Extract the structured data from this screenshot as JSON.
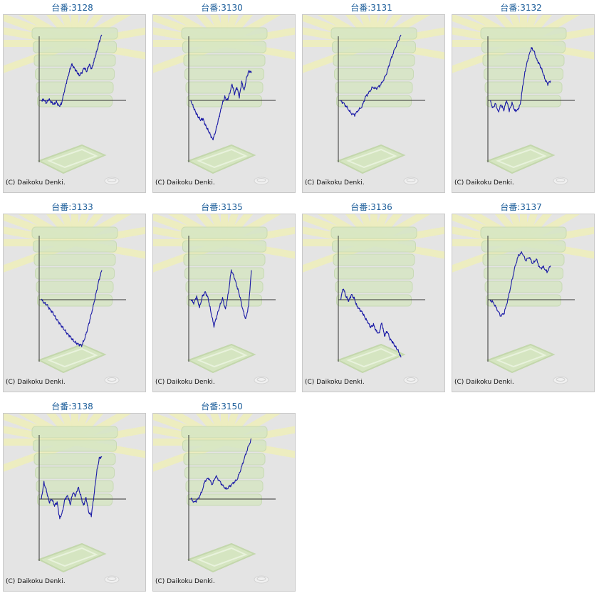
{
  "credit": "(C) Daikoku Denki.",
  "colors": {
    "line": "#1a1aa6",
    "axis": "#333333",
    "title": "#1a5c99",
    "panel_bg": "#e4e4e4"
  },
  "chart_data": [
    {
      "type": "line",
      "title": "台番:3128",
      "ylim": [
        -1,
        1
      ],
      "values": [
        0,
        0.01,
        -0.04,
        0.02,
        -0.03,
        -0.06,
        -0.02,
        -0.09,
        -0.05,
        0.12,
        0.28,
        0.42,
        0.55,
        0.5,
        0.44,
        0.38,
        0.42,
        0.5,
        0.44,
        0.55,
        0.48,
        0.62,
        0.75,
        0.9,
        1.0
      ]
    },
    {
      "type": "line",
      "title": "台番:3130",
      "ylim": [
        -1,
        1
      ],
      "values": [
        0,
        -0.1,
        -0.18,
        -0.25,
        -0.3,
        -0.28,
        -0.38,
        -0.45,
        -0.52,
        -0.6,
        -0.5,
        -0.35,
        -0.2,
        -0.05,
        0.05,
        0,
        0.1,
        0.25,
        0.1,
        0.2,
        0.05,
        0.28,
        0.15,
        0.35,
        0.45,
        0.42
      ]
    },
    {
      "type": "line",
      "title": "台番:3131",
      "ylim": [
        -1,
        1
      ],
      "values": [
        0,
        -0.05,
        -0.12,
        -0.2,
        -0.22,
        -0.15,
        -0.1,
        0.05,
        0.12,
        0.2,
        0.18,
        0.22,
        0.3,
        0.42,
        0.6,
        0.75,
        0.88,
        1.0
      ]
    },
    {
      "type": "line",
      "title": "台番:3132",
      "ylim": [
        -1,
        1
      ],
      "values": [
        0,
        -0.12,
        -0.05,
        -0.18,
        -0.06,
        -0.15,
        0,
        -0.16,
        -0.04,
        -0.16,
        -0.15,
        -0.06,
        0.25,
        0.5,
        0.66,
        0.8,
        0.75,
        0.62,
        0.55,
        0.45,
        0.32,
        0.25,
        0.3
      ]
    },
    {
      "type": "line",
      "title": "台番:3133",
      "ylim": [
        -1,
        1
      ],
      "values": [
        0,
        -0.05,
        -0.08,
        -0.15,
        -0.2,
        -0.28,
        -0.34,
        -0.4,
        -0.46,
        -0.52,
        -0.56,
        -0.62,
        -0.66,
        -0.68,
        -0.7,
        -0.6,
        -0.45,
        -0.28,
        -0.1,
        0.1,
        0.3,
        0.45
      ]
    },
    {
      "type": "line",
      "title": "台番:3135",
      "ylim": [
        -1,
        1
      ],
      "values": [
        0,
        -0.05,
        0.05,
        -0.12,
        0.05,
        0.12,
        0.02,
        -0.2,
        -0.4,
        -0.25,
        -0.1,
        0.02,
        -0.15,
        0.1,
        0.45,
        0.35,
        0.2,
        0.05,
        -0.15,
        -0.3,
        -0.1,
        0.45
      ]
    },
    {
      "type": "line",
      "title": "台番:3136",
      "ylim": [
        -1,
        1
      ],
      "values": [
        0,
        0.18,
        0.05,
        -0.02,
        0.08,
        0.02,
        -0.1,
        -0.15,
        -0.2,
        -0.28,
        -0.35,
        -0.42,
        -0.38,
        -0.48,
        -0.52,
        -0.35,
        -0.55,
        -0.48,
        -0.6,
        -0.65,
        -0.72,
        -0.78,
        -0.88
      ]
    },
    {
      "type": "line",
      "title": "台番:3137",
      "ylim": [
        -1,
        1
      ],
      "values": [
        0,
        -0.05,
        -0.15,
        -0.25,
        -0.2,
        0,
        0.25,
        0.5,
        0.68,
        0.72,
        0.6,
        0.65,
        0.55,
        0.62,
        0.48,
        0.5,
        0.42,
        0.52
      ]
    },
    {
      "type": "line",
      "title": "台番:3138",
      "ylim": [
        -1,
        1
      ],
      "values": [
        0,
        0.25,
        0.12,
        -0.05,
        0,
        -0.1,
        -0.05,
        -0.3,
        -0.2,
        0,
        0.05,
        -0.08,
        0.1,
        0.05,
        0.18,
        0.05,
        -0.1,
        0.02,
        -0.2,
        -0.25,
        0.05,
        0.4,
        0.62,
        0.65
      ]
    },
    {
      "type": "line",
      "title": "台番:3150",
      "ylim": [
        -1,
        1
      ],
      "values": [
        0,
        -0.05,
        0,
        0.1,
        0.28,
        0.32,
        0.22,
        0.35,
        0.28,
        0.2,
        0.15,
        0.2,
        0.25,
        0.3,
        0.45,
        0.62,
        0.78,
        0.92
      ]
    }
  ]
}
